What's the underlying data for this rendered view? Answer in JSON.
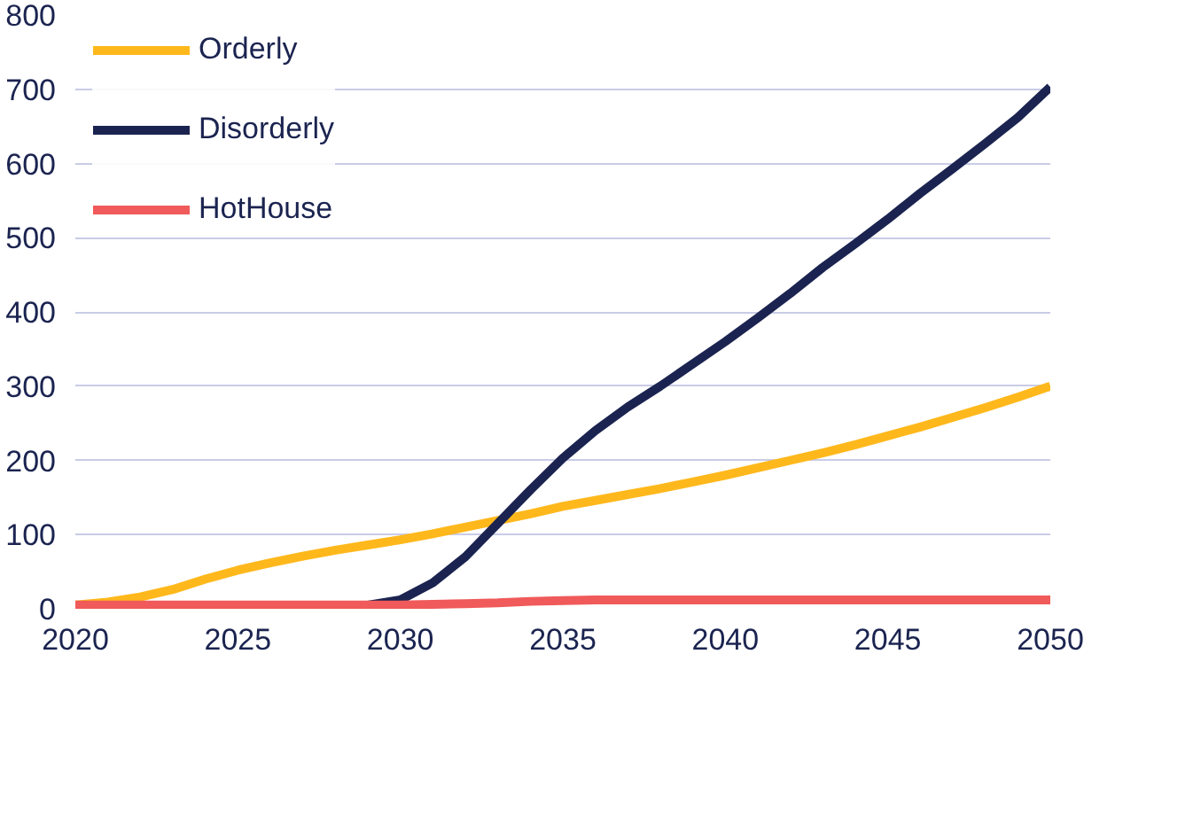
{
  "chart_data": {
    "type": "line",
    "x": [
      2020,
      2021,
      2022,
      2023,
      2024,
      2025,
      2026,
      2027,
      2028,
      2029,
      2030,
      2031,
      2032,
      2033,
      2034,
      2035,
      2036,
      2037,
      2038,
      2039,
      2040,
      2041,
      2042,
      2043,
      2044,
      2045,
      2046,
      2047,
      2048,
      2049,
      2050
    ],
    "series": [
      {
        "name": "Orderly",
        "color": "#ffb81c",
        "values": [
          5,
          9,
          16,
          26,
          40,
          52,
          62,
          71,
          79,
          86,
          93,
          101,
          110,
          119,
          128,
          138,
          146,
          154,
          162,
          171,
          180,
          190,
          200,
          210,
          221,
          233,
          245,
          258,
          271,
          285,
          300
        ]
      },
      {
        "name": "Disorderly",
        "color": "#1b2450",
        "values": [
          null,
          null,
          null,
          null,
          null,
          null,
          null,
          null,
          null,
          5,
          12,
          35,
          70,
          115,
          160,
          203,
          240,
          272,
          300,
          330,
          360,
          392,
          425,
          460,
          492,
          525,
          560,
          593,
          627,
          662,
          703
        ]
      },
      {
        "name": "HotHouse",
        "color": "#f05a5a",
        "values": [
          5,
          5,
          5,
          5,
          5,
          5,
          5,
          5,
          5,
          5,
          5,
          6,
          7,
          8,
          10,
          11,
          12,
          12,
          12,
          12,
          12,
          12,
          12,
          12,
          12,
          12,
          12,
          12,
          12,
          12,
          12
        ]
      }
    ],
    "xlim": [
      2020,
      2050
    ],
    "xticks": [
      2020,
      2025,
      2030,
      2035,
      2040,
      2045,
      2050
    ],
    "ylim": [
      0,
      800
    ],
    "yticks": [
      0,
      100,
      200,
      300,
      400,
      500,
      600,
      700,
      800
    ],
    "grid": "y",
    "legend": "top left",
    "marker": "none",
    "line_style": "solid"
  }
}
